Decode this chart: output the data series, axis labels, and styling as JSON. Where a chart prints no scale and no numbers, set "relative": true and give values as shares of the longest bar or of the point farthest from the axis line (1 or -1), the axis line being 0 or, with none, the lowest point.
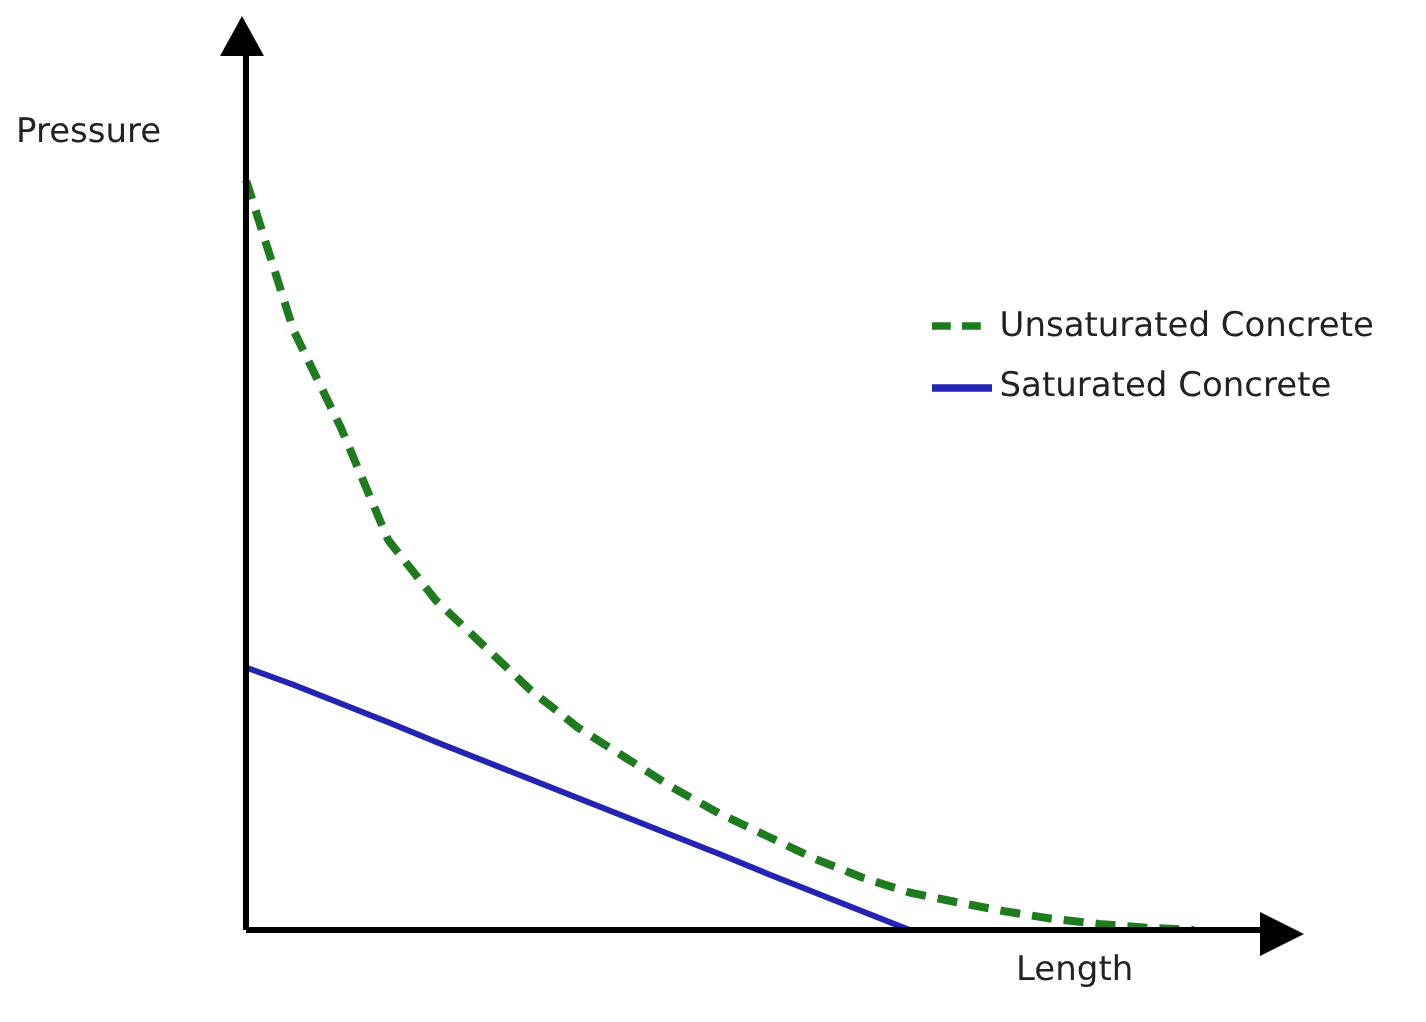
{
  "chart_data": {
    "type": "line",
    "relative": true,
    "xlabel": "Length",
    "ylabel": "Pressure",
    "categories": [
      null,
      null,
      null,
      null,
      null,
      null,
      null,
      null,
      null,
      null,
      null,
      null,
      null,
      null,
      null,
      null,
      null,
      null,
      null,
      null,
      null
    ],
    "series": [
      {
        "name": "Unsaturated Concrete",
        "color": "#1e7b1e",
        "line_style": "dashed",
        "values": [
          1.0,
          0.8,
          0.67,
          0.52,
          0.44,
          0.38,
          0.32,
          0.27,
          0.23,
          0.19,
          0.155,
          0.125,
          0.095,
          0.07,
          0.05,
          0.037,
          0.025,
          0.015,
          0.008,
          0.003,
          0
        ]
      },
      {
        "name": "Saturated Concrete",
        "color": "#2323b4",
        "line_style": "solid",
        "values": [
          0.35,
          0.327,
          0.302,
          0.277,
          0.251,
          0.226,
          0.201,
          0.176,
          0.151,
          0.126,
          0.101,
          0.075,
          0.05,
          0.025,
          0,
          null,
          null,
          null,
          null,
          null,
          null
        ]
      }
    ],
    "legend": "top right",
    "grid": false,
    "marker": "none"
  }
}
